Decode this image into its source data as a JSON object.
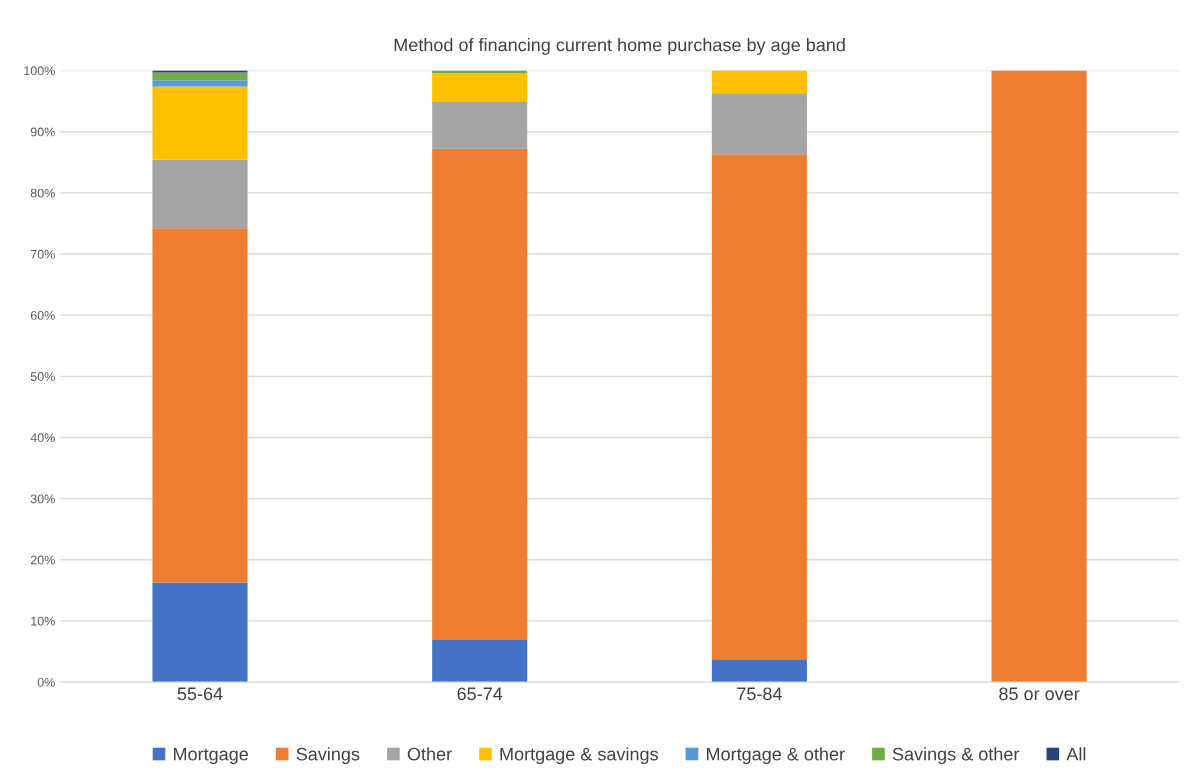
{
  "chart_data": {
    "type": "bar",
    "title": "Method of financing current home purchase by age band",
    "categories": [
      "55-64",
      "65-74",
      "75-84",
      "85 or over"
    ],
    "stacked": true,
    "grid": "y",
    "legend": "bottom",
    "ylim": [
      0,
      100
    ],
    "yticks": [
      {
        "value": 0,
        "label": "0%"
      },
      {
        "value": 10,
        "label": "10%"
      },
      {
        "value": 20,
        "label": "20%"
      },
      {
        "value": 30,
        "label": "30%"
      },
      {
        "value": 40,
        "label": "40%"
      },
      {
        "value": 50,
        "label": "50%"
      },
      {
        "value": 60,
        "label": "60%"
      },
      {
        "value": 70,
        "label": "70%"
      },
      {
        "value": 80,
        "label": "80%"
      },
      {
        "value": 90,
        "label": "90%"
      },
      {
        "value": 100,
        "label": "100%"
      }
    ],
    "series": [
      {
        "name": "Mortgage",
        "color": "#4472c4",
        "values": [
          16.3,
          6.9,
          3.6,
          0
        ]
      },
      {
        "name": "Savings",
        "color": "#ed7d31",
        "values": [
          57.9,
          80.3,
          82.7,
          100
        ]
      },
      {
        "name": "Other",
        "color": "#a5a5a5",
        "values": [
          11.2,
          7.8,
          10.0,
          0
        ]
      },
      {
        "name": "Mortgage & savings",
        "color": "#ffc000",
        "values": [
          12.0,
          4.6,
          3.7,
          0
        ]
      },
      {
        "name": "Mortgage & other",
        "color": "#5b9bd5",
        "values": [
          1.0,
          0,
          0,
          0
        ]
      },
      {
        "name": "Savings & other",
        "color": "#70ad47",
        "values": [
          1.3,
          0.4,
          0,
          0
        ]
      },
      {
        "name": "All",
        "color": "#264478",
        "values": [
          0.3,
          0,
          0,
          0
        ]
      }
    ]
  }
}
